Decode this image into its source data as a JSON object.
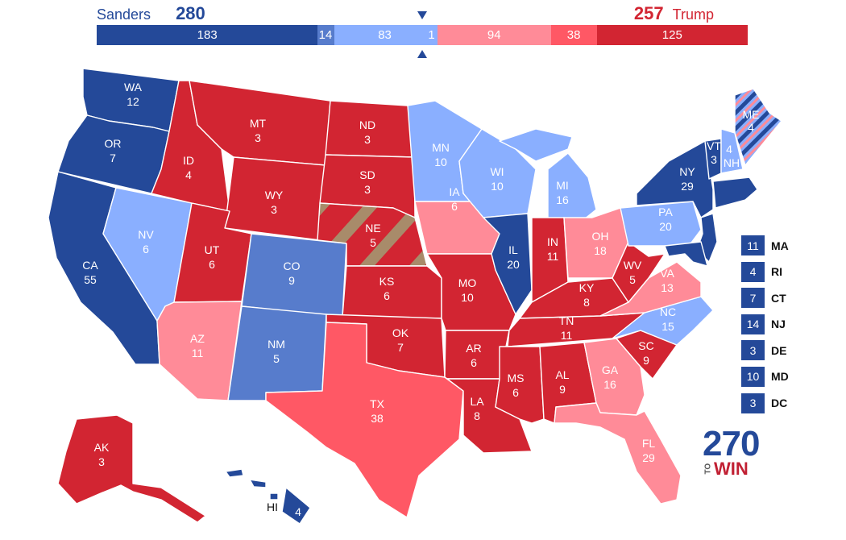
{
  "header": {
    "left": {
      "name": "Sanders",
      "total": "280"
    },
    "right": {
      "name": "Trump",
      "total": "257"
    }
  },
  "colors": {
    "safe_dem": "#244999",
    "likely_dem": "#577ccc",
    "lean_dem": "#8aafff",
    "tossup": "#c8b88a",
    "lean_rep": "#ff8b98",
    "likely_rep": "#ff5865",
    "safe_rep": "#d22532"
  },
  "bar": [
    {
      "label": "183",
      "value": 183,
      "color": "#244999"
    },
    {
      "label": "14",
      "value": 14,
      "color": "#577ccc",
      "align": "end"
    },
    {
      "label": "83",
      "value": 83,
      "color": "#8aafff"
    },
    {
      "label": "1",
      "value": 1,
      "color": "#8aafff",
      "align": "end"
    },
    {
      "label": "94",
      "value": 94,
      "color": "#ff8b98"
    },
    {
      "label": "38",
      "value": 38,
      "color": "#ff5865"
    },
    {
      "label": "125",
      "value": 125,
      "color": "#d22532"
    }
  ],
  "states": {
    "WA": {
      "abbr": "WA",
      "ev": "12",
      "color": "#244999"
    },
    "OR": {
      "abbr": "OR",
      "ev": "7",
      "color": "#244999"
    },
    "CA": {
      "abbr": "CA",
      "ev": "55",
      "color": "#244999"
    },
    "NV": {
      "abbr": "NV",
      "ev": "6",
      "color": "#8aafff"
    },
    "ID": {
      "abbr": "ID",
      "ev": "4",
      "color": "#d22532"
    },
    "MT": {
      "abbr": "MT",
      "ev": "3",
      "color": "#d22532"
    },
    "WY": {
      "abbr": "WY",
      "ev": "3",
      "color": "#d22532"
    },
    "UT": {
      "abbr": "UT",
      "ev": "6",
      "color": "#d22532"
    },
    "AZ": {
      "abbr": "AZ",
      "ev": "11",
      "color": "#ff8b98"
    },
    "CO": {
      "abbr": "CO",
      "ev": "9",
      "color": "#577ccc"
    },
    "NM": {
      "abbr": "NM",
      "ev": "5",
      "color": "#577ccc"
    },
    "ND": {
      "abbr": "ND",
      "ev": "3",
      "color": "#d22532"
    },
    "SD": {
      "abbr": "SD",
      "ev": "3",
      "color": "#d22532"
    },
    "NE": {
      "abbr": "NE",
      "ev": "5",
      "color": "#d22532"
    },
    "KS": {
      "abbr": "KS",
      "ev": "6",
      "color": "#d22532"
    },
    "OK": {
      "abbr": "OK",
      "ev": "7",
      "color": "#d22532"
    },
    "TX": {
      "abbr": "TX",
      "ev": "38",
      "color": "#ff5865"
    },
    "MN": {
      "abbr": "MN",
      "ev": "10",
      "color": "#8aafff"
    },
    "IA": {
      "abbr": "IA",
      "ev": "6",
      "color": "#ff8b98"
    },
    "MO": {
      "abbr": "MO",
      "ev": "10",
      "color": "#d22532"
    },
    "AR": {
      "abbr": "AR",
      "ev": "6",
      "color": "#d22532"
    },
    "LA": {
      "abbr": "LA",
      "ev": "8",
      "color": "#d22532"
    },
    "WI": {
      "abbr": "WI",
      "ev": "10",
      "color": "#8aafff"
    },
    "IL": {
      "abbr": "IL",
      "ev": "20",
      "color": "#244999"
    },
    "MI": {
      "abbr": "MI",
      "ev": "16",
      "color": "#8aafff"
    },
    "IN": {
      "abbr": "IN",
      "ev": "11",
      "color": "#d22532"
    },
    "OH": {
      "abbr": "OH",
      "ev": "18",
      "color": "#ff8b98"
    },
    "KY": {
      "abbr": "KY",
      "ev": "8",
      "color": "#d22532"
    },
    "TN": {
      "abbr": "TN",
      "ev": "11",
      "color": "#d22532"
    },
    "MS": {
      "abbr": "MS",
      "ev": "6",
      "color": "#d22532"
    },
    "AL": {
      "abbr": "AL",
      "ev": "9",
      "color": "#d22532"
    },
    "GA": {
      "abbr": "GA",
      "ev": "16",
      "color": "#ff8b98"
    },
    "FL": {
      "abbr": "FL",
      "ev": "29",
      "color": "#ff8b98"
    },
    "SC": {
      "abbr": "SC",
      "ev": "9",
      "color": "#d22532"
    },
    "NC": {
      "abbr": "NC",
      "ev": "15",
      "color": "#8aafff"
    },
    "VA": {
      "abbr": "VA",
      "ev": "13",
      "color": "#ff8b98"
    },
    "WV": {
      "abbr": "WV",
      "ev": "5",
      "color": "#d22532"
    },
    "PA": {
      "abbr": "PA",
      "ev": "20",
      "color": "#8aafff"
    },
    "NY": {
      "abbr": "NY",
      "ev": "29",
      "color": "#244999"
    },
    "VT": {
      "abbr": "VT",
      "ev": "3",
      "color": "#244999"
    },
    "NH": {
      "abbr": "NH",
      "ev": "4",
      "color": "#8aafff"
    },
    "ME": {
      "abbr": "ME",
      "ev": "4",
      "color": "#8aafff"
    },
    "AK": {
      "abbr": "AK",
      "ev": "3",
      "color": "#d22532"
    },
    "HI": {
      "abbr": "HI",
      "ev": "4",
      "color": "#244999"
    }
  },
  "small_states": [
    {
      "abbr": "MA",
      "ev": "11",
      "color": "#244999"
    },
    {
      "abbr": "RI",
      "ev": "4",
      "color": "#244999"
    },
    {
      "abbr": "CT",
      "ev": "7",
      "color": "#244999"
    },
    {
      "abbr": "NJ",
      "ev": "14",
      "color": "#244999"
    },
    {
      "abbr": "DE",
      "ev": "3",
      "color": "#244999"
    },
    {
      "abbr": "MD",
      "ev": "10",
      "color": "#244999"
    },
    {
      "abbr": "DC",
      "ev": "3",
      "color": "#244999"
    }
  ],
  "logo": {
    "number": "270",
    "to": "TO",
    "win": "WIN"
  }
}
